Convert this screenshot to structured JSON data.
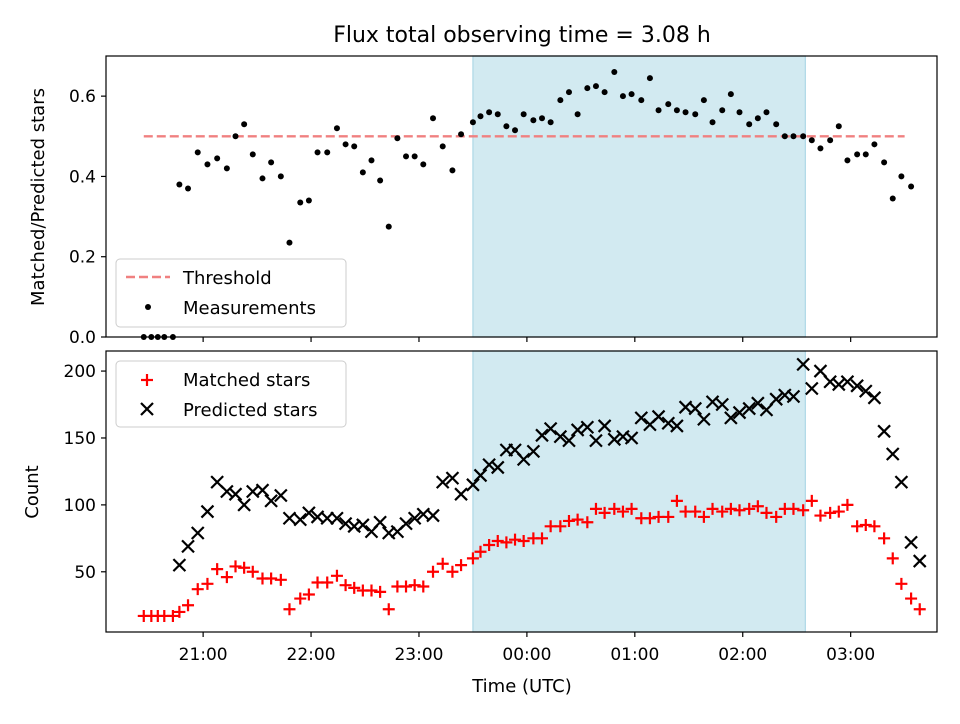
{
  "chart_data": [
    {
      "type": "scatter",
      "title": "Flux total observing time = 3.08 h",
      "ylabel": "Matched/Predicted stars",
      "ylim": [
        0,
        0.7
      ],
      "yticks": [
        0.0,
        0.2,
        0.4,
        0.6
      ],
      "ytick_labels": [
        "0.0",
        "0.2",
        "0.4",
        "0.6"
      ],
      "xlim": [
        -0.9,
        6.8
      ],
      "grid": false,
      "legend_placement": "lower-left",
      "threshold": {
        "name": "Threshold",
        "value": 0.5,
        "x_range": [
          -0.55,
          6.5
        ],
        "color": "#f08080",
        "style": "dashed"
      },
      "observing_window": {
        "x_start": 2.5,
        "x_end": 5.58,
        "color": "#add8e6"
      },
      "series": [
        {
          "name": "Measurements",
          "color": "#000000",
          "marker": "dot",
          "points": [
            [
              -0.55,
              0.0
            ],
            [
              -0.48,
              0.0
            ],
            [
              -0.42,
              0.0
            ],
            [
              -0.36,
              0.0
            ],
            [
              -0.28,
              0.0
            ],
            [
              -0.22,
              0.38
            ],
            [
              -0.14,
              0.37
            ],
            [
              -0.05,
              0.46
            ],
            [
              0.04,
              0.43
            ],
            [
              0.13,
              0.445
            ],
            [
              0.22,
              0.42
            ],
            [
              0.3,
              0.5
            ],
            [
              0.38,
              0.53
            ],
            [
              0.46,
              0.455
            ],
            [
              0.55,
              0.395
            ],
            [
              0.63,
              0.435
            ],
            [
              0.72,
              0.4
            ],
            [
              0.8,
              0.235
            ],
            [
              0.9,
              0.335
            ],
            [
              0.98,
              0.34
            ],
            [
              1.06,
              0.46
            ],
            [
              1.15,
              0.46
            ],
            [
              1.24,
              0.52
            ],
            [
              1.32,
              0.48
            ],
            [
              1.4,
              0.475
            ],
            [
              1.48,
              0.41
            ],
            [
              1.56,
              0.44
            ],
            [
              1.64,
              0.39
            ],
            [
              1.72,
              0.275
            ],
            [
              1.8,
              0.495
            ],
            [
              1.88,
              0.45
            ],
            [
              1.96,
              0.45
            ],
            [
              2.04,
              0.43
            ],
            [
              2.13,
              0.545
            ],
            [
              2.22,
              0.475
            ],
            [
              2.31,
              0.415
            ],
            [
              2.39,
              0.505
            ],
            [
              2.5,
              0.535
            ],
            [
              2.57,
              0.55
            ],
            [
              2.65,
              0.56
            ],
            [
              2.73,
              0.555
            ],
            [
              2.81,
              0.525
            ],
            [
              2.89,
              0.515
            ],
            [
              2.97,
              0.555
            ],
            [
              3.06,
              0.54
            ],
            [
              3.14,
              0.545
            ],
            [
              3.22,
              0.535
            ],
            [
              3.31,
              0.59
            ],
            [
              3.39,
              0.61
            ],
            [
              3.47,
              0.555
            ],
            [
              3.56,
              0.62
            ],
            [
              3.64,
              0.625
            ],
            [
              3.72,
              0.61
            ],
            [
              3.81,
              0.66
            ],
            [
              3.89,
              0.6
            ],
            [
              3.97,
              0.605
            ],
            [
              4.06,
              0.59
            ],
            [
              4.14,
              0.645
            ],
            [
              4.22,
              0.565
            ],
            [
              4.31,
              0.58
            ],
            [
              4.39,
              0.565
            ],
            [
              4.47,
              0.56
            ],
            [
              4.56,
              0.555
            ],
            [
              4.64,
              0.59
            ],
            [
              4.72,
              0.535
            ],
            [
              4.81,
              0.565
            ],
            [
              4.89,
              0.605
            ],
            [
              4.97,
              0.56
            ],
            [
              5.06,
              0.53
            ],
            [
              5.14,
              0.545
            ],
            [
              5.22,
              0.56
            ],
            [
              5.31,
              0.53
            ],
            [
              5.39,
              0.5
            ],
            [
              5.47,
              0.5
            ],
            [
              5.56,
              0.5
            ],
            [
              5.64,
              0.49
            ],
            [
              5.72,
              0.47
            ],
            [
              5.81,
              0.49
            ],
            [
              5.89,
              0.525
            ],
            [
              5.97,
              0.44
            ],
            [
              6.06,
              0.455
            ],
            [
              6.14,
              0.455
            ],
            [
              6.22,
              0.48
            ],
            [
              6.31,
              0.435
            ],
            [
              6.39,
              0.345
            ],
            [
              6.47,
              0.4
            ],
            [
              6.56,
              0.375
            ]
          ]
        }
      ],
      "legend": [
        {
          "label": "Threshold",
          "kind": "dashed-line"
        },
        {
          "label": "Measurements",
          "kind": "dot"
        }
      ]
    },
    {
      "type": "scatter",
      "xlabel": "Time (UTC)",
      "ylabel": "Count",
      "ylim": [
        5,
        215
      ],
      "yticks": [
        50,
        100,
        150,
        200
      ],
      "ytick_labels": [
        "50",
        "100",
        "150",
        "200"
      ],
      "xlim": [
        -0.9,
        6.8
      ],
      "xticks": [
        0,
        1,
        2,
        3,
        4,
        5,
        6
      ],
      "xtick_labels": [
        "21:00",
        "22:00",
        "23:00",
        "00:00",
        "01:00",
        "02:00",
        "03:00"
      ],
      "grid": false,
      "legend_placement": "upper-left",
      "observing_window": {
        "x_start": 2.5,
        "x_end": 5.58,
        "color": "#add8e6"
      },
      "series": [
        {
          "name": "Matched stars",
          "color": "#ff0000",
          "marker": "plus",
          "points": [
            [
              -0.55,
              17
            ],
            [
              -0.48,
              17
            ],
            [
              -0.42,
              17
            ],
            [
              -0.36,
              17
            ],
            [
              -0.28,
              17
            ],
            [
              -0.22,
              20
            ],
            [
              -0.14,
              25
            ],
            [
              -0.05,
              37
            ],
            [
              0.04,
              41
            ],
            [
              0.13,
              52
            ],
            [
              0.22,
              46
            ],
            [
              0.3,
              54
            ],
            [
              0.38,
              53
            ],
            [
              0.46,
              50
            ],
            [
              0.55,
              45
            ],
            [
              0.63,
              45
            ],
            [
              0.72,
              44
            ],
            [
              0.8,
              22
            ],
            [
              0.9,
              30
            ],
            [
              0.98,
              33
            ],
            [
              1.06,
              42
            ],
            [
              1.15,
              42
            ],
            [
              1.24,
              47
            ],
            [
              1.32,
              40
            ],
            [
              1.4,
              38
            ],
            [
              1.48,
              36
            ],
            [
              1.56,
              36
            ],
            [
              1.64,
              35
            ],
            [
              1.72,
              22
            ],
            [
              1.8,
              39
            ],
            [
              1.88,
              39
            ],
            [
              1.96,
              40
            ],
            [
              2.04,
              39
            ],
            [
              2.13,
              50
            ],
            [
              2.22,
              56
            ],
            [
              2.31,
              50
            ],
            [
              2.39,
              55
            ],
            [
              2.5,
              60
            ],
            [
              2.57,
              65
            ],
            [
              2.65,
              70
            ],
            [
              2.73,
              73
            ],
            [
              2.81,
              72
            ],
            [
              2.89,
              74
            ],
            [
              2.97,
              73
            ],
            [
              3.06,
              75
            ],
            [
              3.14,
              75
            ],
            [
              3.22,
              84
            ],
            [
              3.31,
              84
            ],
            [
              3.39,
              88
            ],
            [
              3.47,
              89
            ],
            [
              3.56,
              87
            ],
            [
              3.64,
              97
            ],
            [
              3.72,
              94
            ],
            [
              3.81,
              97
            ],
            [
              3.89,
              95
            ],
            [
              3.97,
              97
            ],
            [
              4.06,
              90
            ],
            [
              4.14,
              90
            ],
            [
              4.22,
              91
            ],
            [
              4.31,
              91
            ],
            [
              4.39,
              103
            ],
            [
              4.47,
              95
            ],
            [
              4.56,
              95
            ],
            [
              4.64,
              91
            ],
            [
              4.72,
              97
            ],
            [
              4.81,
              95
            ],
            [
              4.89,
              97
            ],
            [
              4.97,
              96
            ],
            [
              5.06,
              97
            ],
            [
              5.14,
              99
            ],
            [
              5.22,
              94
            ],
            [
              5.31,
              91
            ],
            [
              5.39,
              97
            ],
            [
              5.47,
              97
            ],
            [
              5.56,
              96
            ],
            [
              5.64,
              103
            ],
            [
              5.72,
              92
            ],
            [
              5.81,
              94
            ],
            [
              5.89,
              95
            ],
            [
              5.97,
              100
            ],
            [
              6.06,
              84
            ],
            [
              6.14,
              85
            ],
            [
              6.22,
              84
            ],
            [
              6.31,
              75
            ],
            [
              6.39,
              60
            ],
            [
              6.47,
              41
            ],
            [
              6.56,
              30
            ],
            [
              6.64,
              22
            ]
          ]
        },
        {
          "name": "Predicted stars",
          "color": "#000000",
          "marker": "cross",
          "points": [
            [
              -0.22,
              55
            ],
            [
              -0.14,
              69
            ],
            [
              -0.05,
              79
            ],
            [
              0.04,
              95
            ],
            [
              0.13,
              117
            ],
            [
              0.22,
              110
            ],
            [
              0.3,
              108
            ],
            [
              0.38,
              100
            ],
            [
              0.46,
              110
            ],
            [
              0.55,
              111
            ],
            [
              0.63,
              103
            ],
            [
              0.72,
              107
            ],
            [
              0.8,
              90
            ],
            [
              0.9,
              89
            ],
            [
              0.98,
              94
            ],
            [
              1.06,
              91
            ],
            [
              1.15,
              90
            ],
            [
              1.24,
              90
            ],
            [
              1.32,
              86
            ],
            [
              1.4,
              84
            ],
            [
              1.48,
              85
            ],
            [
              1.56,
              80
            ],
            [
              1.64,
              87
            ],
            [
              1.72,
              79
            ],
            [
              1.8,
              80
            ],
            [
              1.88,
              86
            ],
            [
              1.96,
              90
            ],
            [
              2.04,
              93
            ],
            [
              2.13,
              92
            ],
            [
              2.22,
              117
            ],
            [
              2.31,
              120
            ],
            [
              2.39,
              108
            ],
            [
              2.5,
              115
            ],
            [
              2.57,
              122
            ],
            [
              2.65,
              130
            ],
            [
              2.73,
              128
            ],
            [
              2.81,
              141
            ],
            [
              2.89,
              141
            ],
            [
              2.97,
              134
            ],
            [
              3.06,
              140
            ],
            [
              3.14,
              152
            ],
            [
              3.22,
              157
            ],
            [
              3.31,
              151
            ],
            [
              3.39,
              148
            ],
            [
              3.47,
              156
            ],
            [
              3.56,
              158
            ],
            [
              3.64,
              148
            ],
            [
              3.72,
              159
            ],
            [
              3.81,
              149
            ],
            [
              3.89,
              151
            ],
            [
              3.97,
              150
            ],
            [
              4.06,
              165
            ],
            [
              4.14,
              160
            ],
            [
              4.22,
              166
            ],
            [
              4.31,
              161
            ],
            [
              4.39,
              159
            ],
            [
              4.47,
              173
            ],
            [
              4.56,
              172
            ],
            [
              4.64,
              164
            ],
            [
              4.72,
              177
            ],
            [
              4.81,
              175
            ],
            [
              4.89,
              165
            ],
            [
              4.97,
              169
            ],
            [
              5.06,
              172
            ],
            [
              5.14,
              176
            ],
            [
              5.22,
              171
            ],
            [
              5.31,
              179
            ],
            [
              5.39,
              182
            ],
            [
              5.47,
              181
            ],
            [
              5.56,
              205
            ],
            [
              5.64,
              187
            ],
            [
              5.72,
              200
            ],
            [
              5.81,
              192
            ],
            [
              5.89,
              190
            ],
            [
              5.97,
              192
            ],
            [
              6.06,
              189
            ],
            [
              6.14,
              185
            ],
            [
              6.22,
              180
            ],
            [
              6.31,
              155
            ],
            [
              6.39,
              138
            ],
            [
              6.47,
              117
            ],
            [
              6.56,
              72
            ],
            [
              6.64,
              58
            ]
          ]
        }
      ],
      "legend": [
        {
          "label": "Matched stars",
          "kind": "plus"
        },
        {
          "label": "Predicted stars",
          "kind": "cross"
        }
      ]
    }
  ]
}
